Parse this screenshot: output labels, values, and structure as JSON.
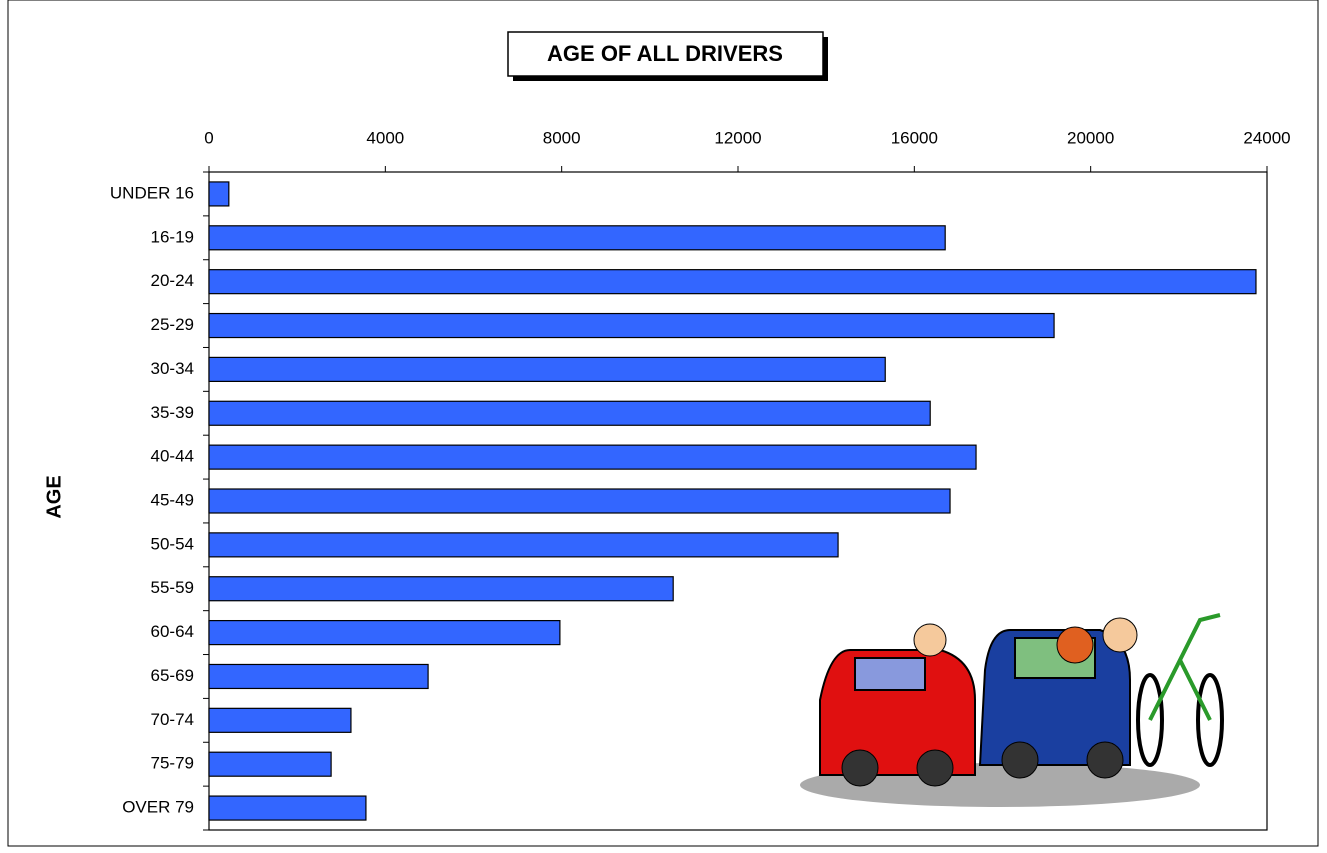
{
  "chart_data": {
    "type": "bar",
    "orientation": "horizontal",
    "title": "AGE OF ALL DRIVERS",
    "y_label": "AGE",
    "categories": [
      "UNDER 16",
      "16-19",
      "20-24",
      "25-29",
      "30-34",
      "35-39",
      "40-44",
      "45-49",
      "50-54",
      "55-59",
      "60-64",
      "65-69",
      "70-74",
      "75-79",
      "OVER 79"
    ],
    "values": [
      450,
      16700,
      23750,
      19170,
      15340,
      16360,
      17400,
      16810,
      14270,
      10530,
      7960,
      4970,
      3220,
      2770,
      3560
    ],
    "color": "#3366ff",
    "xlim": [
      0,
      24000
    ],
    "xticks": [
      0,
      4000,
      8000,
      12000,
      16000,
      20000,
      24000
    ],
    "grid": false
  }
}
